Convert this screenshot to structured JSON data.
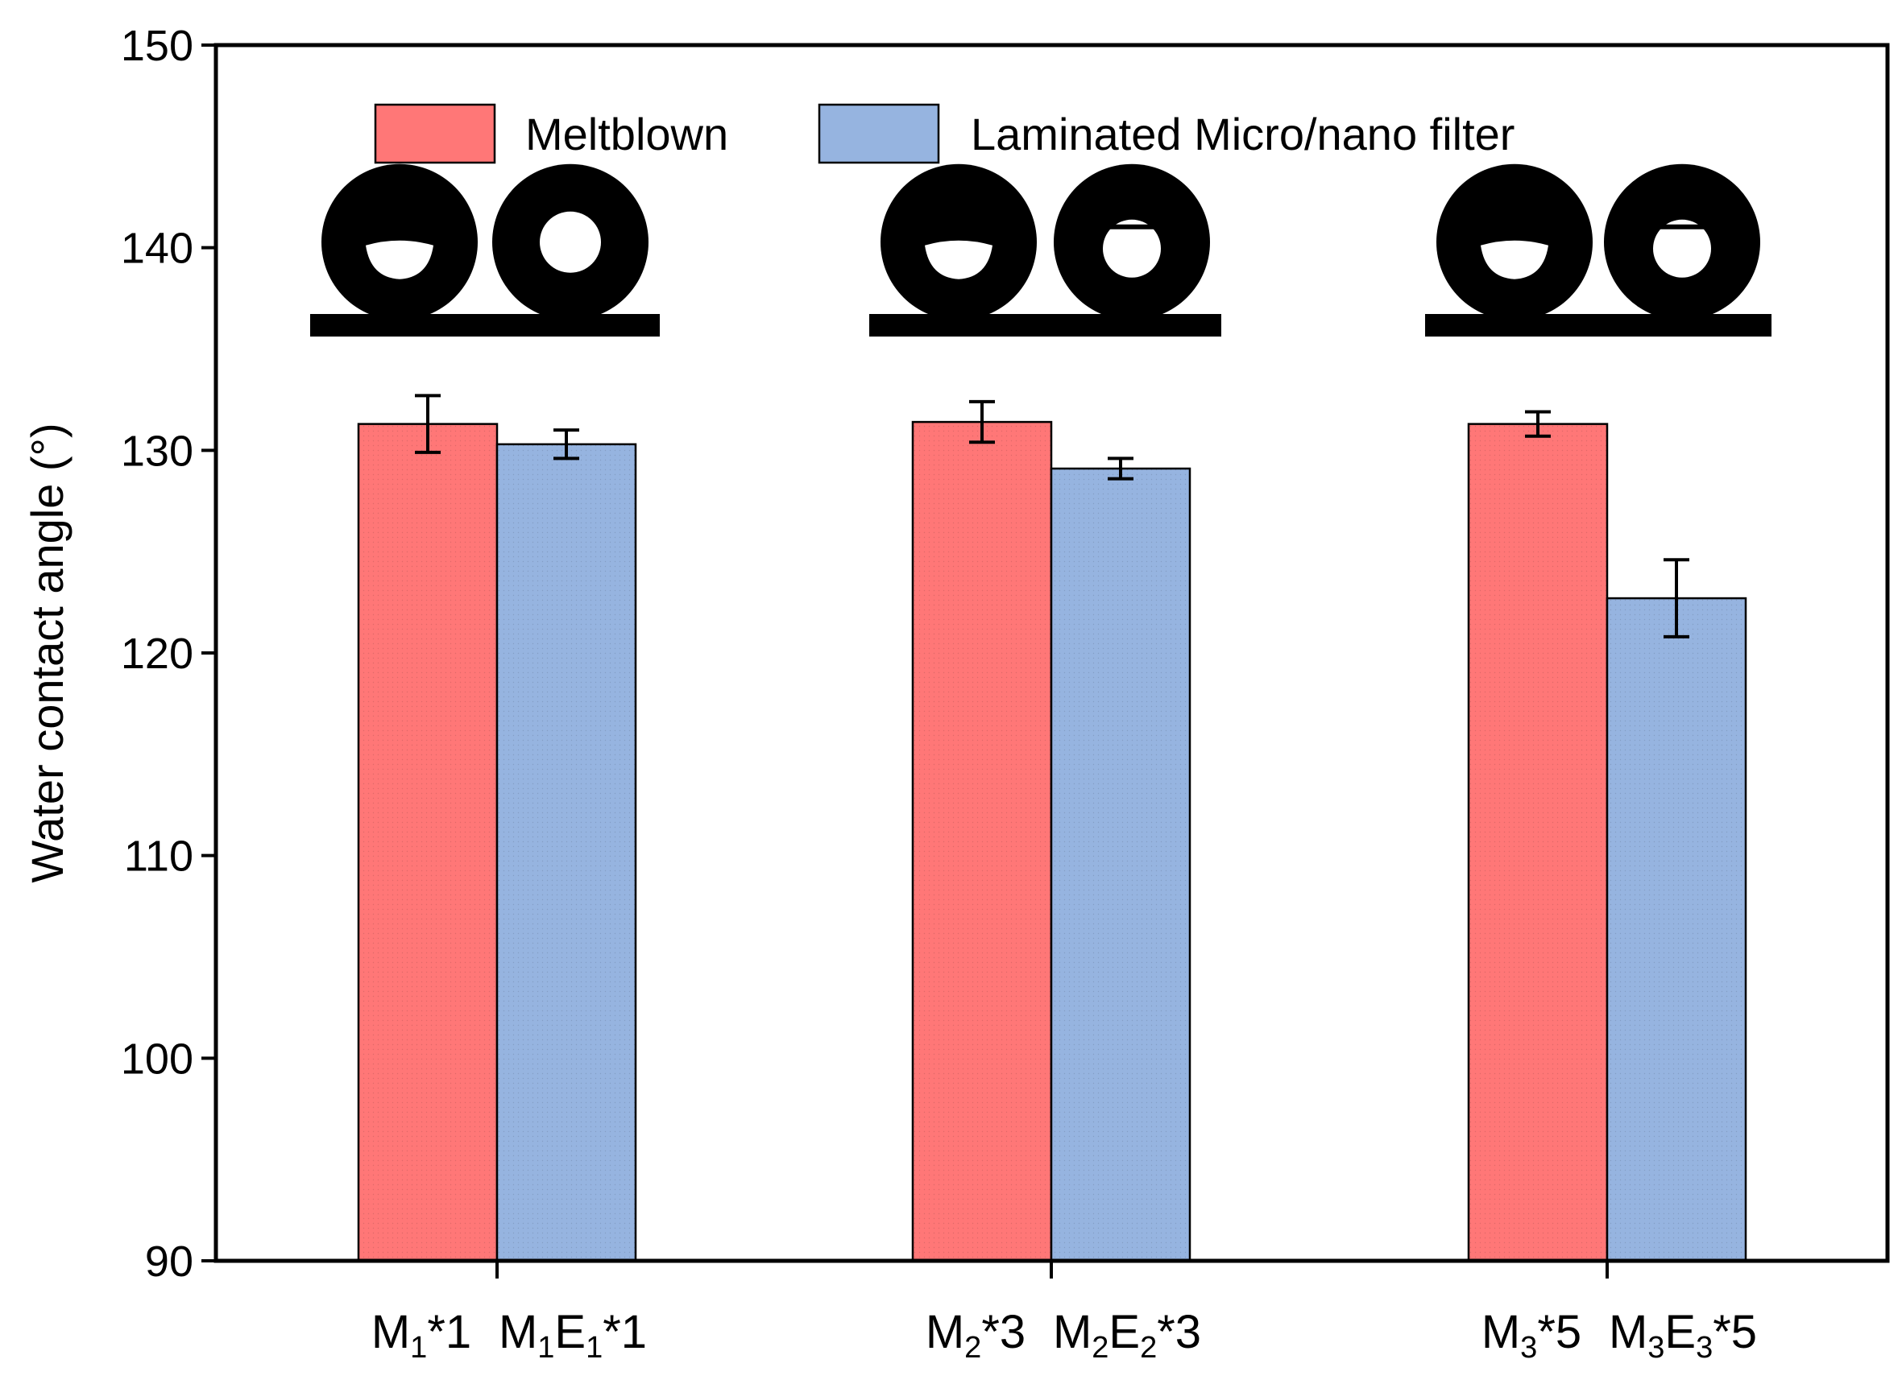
{
  "chart_data": {
    "type": "bar",
    "ylabel": "Water contact angle (°)",
    "ylim": [
      90,
      150
    ],
    "yticks": [
      90,
      100,
      110,
      120,
      130,
      140,
      150
    ],
    "groups": [
      {
        "labels": [
          {
            "main": "M",
            "sub": "1",
            "rest": "*1"
          },
          {
            "main": "M",
            "sub": "1",
            "main2": "E",
            "sub2": "1",
            "rest": "*1"
          }
        ]
      },
      {
        "labels": [
          {
            "main": "M",
            "sub": "2",
            "rest": "*3"
          },
          {
            "main": "M",
            "sub": "2",
            "main2": "E",
            "sub2": "2",
            "rest": "*3"
          }
        ]
      },
      {
        "labels": [
          {
            "main": "M",
            "sub": "3",
            "rest": "*5"
          },
          {
            "main": "M",
            "sub": "3",
            "main2": "E",
            "sub2": "3",
            "rest": "*5"
          }
        ]
      }
    ],
    "series": [
      {
        "name": "Meltblown",
        "color": "#ff7777",
        "values": [
          131.3,
          131.4,
          131.3
        ],
        "errors": [
          1.4,
          1.0,
          0.6
        ]
      },
      {
        "name": "Laminated Micro/nano filter",
        "color": "#96b4e0",
        "values": [
          130.3,
          129.1,
          122.7
        ],
        "errors": [
          0.7,
          0.5,
          1.9
        ]
      }
    ],
    "legend_position": "top",
    "grid": false,
    "inset_images": "water droplet contact-angle photographs above each bar"
  }
}
